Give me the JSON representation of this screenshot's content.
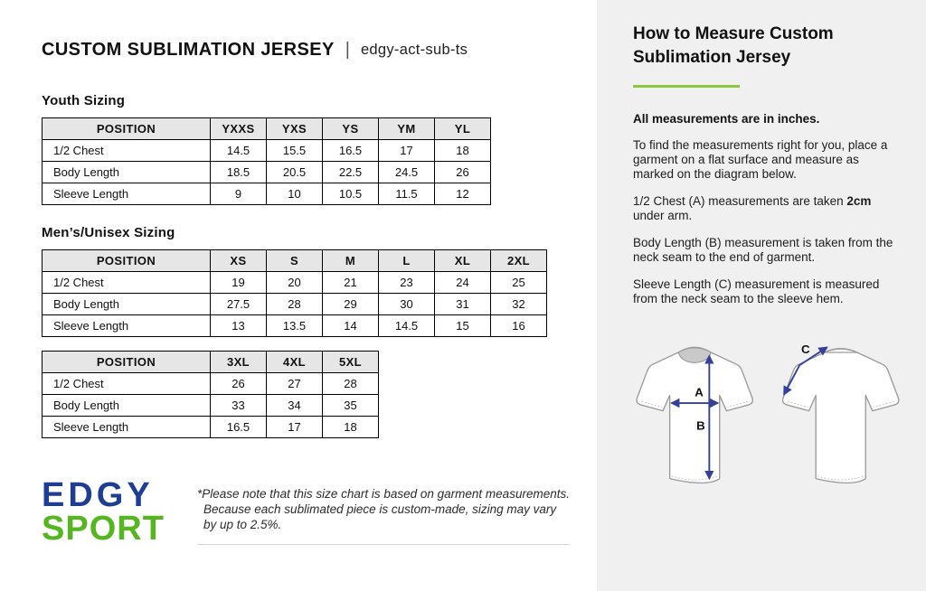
{
  "page": {
    "title": "CUSTOM SUBLIMATION JERSEY",
    "separator": "|",
    "sku": "edgy-act-sub-ts"
  },
  "tables": {
    "youth": {
      "heading": "Youth Sizing",
      "headers": [
        "POSITION",
        "YXXS",
        "YXS",
        "YS",
        "YM",
        "YL"
      ],
      "rows": [
        [
          "1/2 Chest",
          "14.5",
          "15.5",
          "16.5",
          "17",
          "18"
        ],
        [
          "Body Length",
          "18.5",
          "20.5",
          "22.5",
          "24.5",
          "26"
        ],
        [
          "Sleeve Length",
          "9",
          "10",
          "10.5",
          "11.5",
          "12"
        ]
      ]
    },
    "mens": {
      "heading": "Men’s/Unisex Sizing",
      "headers": [
        "POSITION",
        "XS",
        "S",
        "M",
        "L",
        "XL",
        "2XL"
      ],
      "rows": [
        [
          "1/2 Chest",
          "19",
          "20",
          "21",
          "23",
          "24",
          "25"
        ],
        [
          "Body Length",
          "27.5",
          "28",
          "29",
          "30",
          "31",
          "32"
        ],
        [
          "Sleeve Length",
          "13",
          "13.5",
          "14",
          "14.5",
          "15",
          "16"
        ]
      ]
    },
    "mens_ext": {
      "headers": [
        "POSITION",
        "3XL",
        "4XL",
        "5XL"
      ],
      "rows": [
        [
          "1/2 Chest",
          "26",
          "27",
          "28"
        ],
        [
          "Body Length",
          "33",
          "34",
          "35"
        ],
        [
          "Sleeve Length",
          "16.5",
          "17",
          "18"
        ]
      ]
    }
  },
  "logo": {
    "line1": "EDGY",
    "line2": "SPORT"
  },
  "footnote": "*Please note that this size chart is based on garment measurements. Because each sublimated piece is custom-made, sizing may vary by up to 2.5%.",
  "sidebar": {
    "heading": "How to Measure Custom Sublimation Jersey",
    "note_bold": "All measurements are in inches.",
    "p1": "To find the measurements right for you, place a garment on a flat surface and measure as marked on the diagram below.",
    "p2a": "1/2 Chest (A) measurements are taken ",
    "p2b": "2cm",
    "p2c": " under arm.",
    "p3": "Body Length (B) measurement is taken from the neck seam to the end of garment.",
    "p4": "Sleeve Length (C) measurement is measured from the neck seam to the sleeve hem."
  },
  "diagram": {
    "label_a": "A",
    "label_b": "B",
    "label_c": "C"
  },
  "colors": {
    "accent_green": "#8dc63f",
    "logo_blue": "#1d3e92",
    "logo_green": "#55b71f",
    "arrow_blue": "#34419b",
    "sidebar_bg": "#f0f0f1",
    "table_header_bg": "#e6e6e6"
  }
}
